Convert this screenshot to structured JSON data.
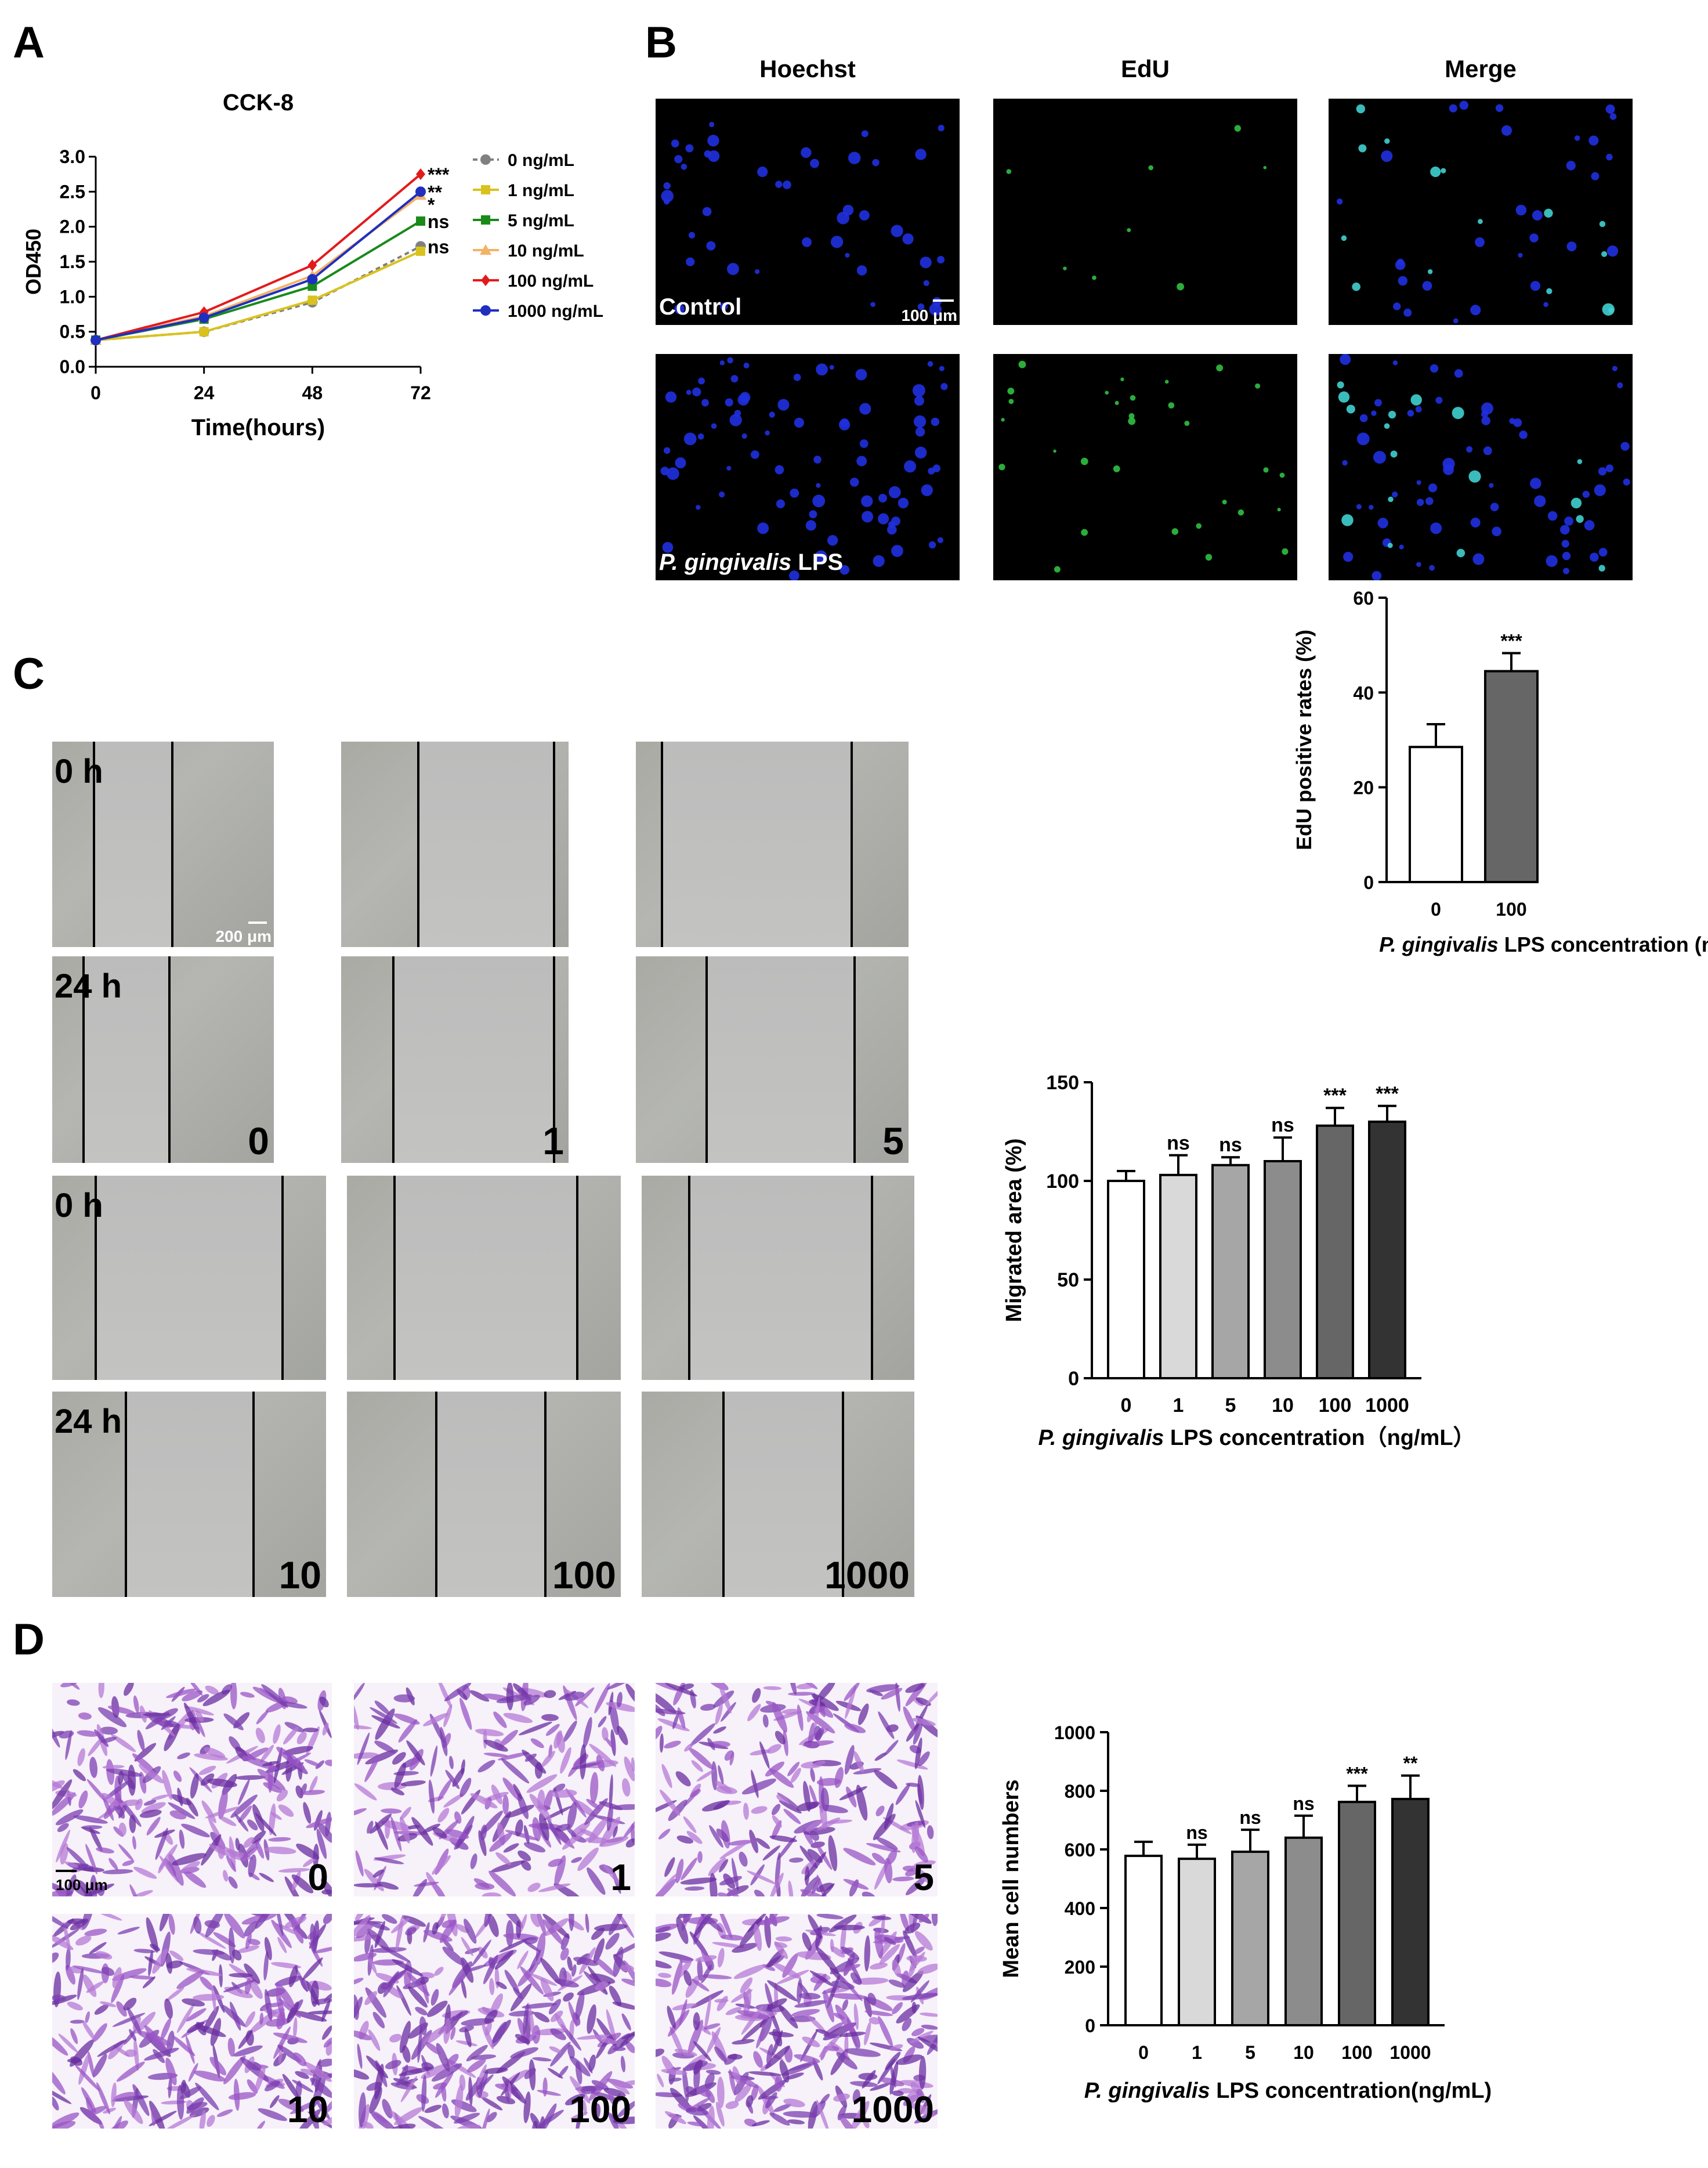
{
  "panels": {
    "a": "A",
    "b": "B",
    "c": "C",
    "d": "D"
  },
  "panel_b": {
    "columns": [
      "Hoechst",
      "EdU",
      "Merge"
    ],
    "row_labels": {
      "control": "Control",
      "lps_italic": "P. gingivalis",
      "lps_rest": " LPS"
    },
    "scalebar": "100 μm"
  },
  "panel_c": {
    "time_0": "0 h",
    "time_24": "24 h",
    "scalebar": "200 μm",
    "conc_labels": [
      "0",
      "1",
      "5",
      "10",
      "100",
      "1000"
    ]
  },
  "panel_d": {
    "scalebar": "100 μm",
    "conc_labels": [
      "0",
      "1",
      "5",
      "10",
      "100",
      "1000"
    ]
  },
  "colors": {
    "series": [
      "#808080",
      "#d9c21e",
      "#1a8a1a",
      "#f4b266",
      "#e31a1c",
      "#1f2fbf"
    ],
    "bars": [
      "#ffffff",
      "#d9d9d9",
      "#a6a6a6",
      "#8c8c8c",
      "#666666",
      "#333333"
    ]
  },
  "chart_data": [
    {
      "type": "line",
      "title": "CCK-8",
      "xlabel": "Time(hours)",
      "ylabel": "OD450",
      "x": [
        0,
        24,
        48,
        72
      ],
      "xlim": [
        0,
        72
      ],
      "ylim": [
        0,
        3.0
      ],
      "yticks": [
        0.0,
        0.5,
        1.0,
        1.5,
        2.0,
        2.5,
        3.0
      ],
      "ytick_labels": [
        "0.0",
        "0.5",
        "1.0",
        "1.5",
        "2.0",
        "2.5",
        "3.0"
      ],
      "series": [
        {
          "name": "0 ng/mL",
          "values": [
            0.38,
            0.5,
            0.92,
            1.72
          ],
          "sig": "ns"
        },
        {
          "name": "1 ng/mL",
          "values": [
            0.38,
            0.5,
            0.95,
            1.65
          ],
          "sig": ""
        },
        {
          "name": "5 ng/mL",
          "values": [
            0.38,
            0.68,
            1.15,
            2.08
          ],
          "sig": "ns"
        },
        {
          "name": "10 ng/mL",
          "values": [
            0.38,
            0.72,
            1.3,
            2.45
          ],
          "sig": "*"
        },
        {
          "name": "100 ng/mL",
          "values": [
            0.38,
            0.78,
            1.45,
            2.75
          ],
          "sig": "***"
        },
        {
          "name": "1000 ng/mL",
          "values": [
            0.38,
            0.7,
            1.25,
            2.5
          ],
          "sig": "**"
        }
      ],
      "legend": "right"
    },
    {
      "type": "bar",
      "categories": [
        "0",
        "100"
      ],
      "values": [
        28.5,
        44.5
      ],
      "errors": [
        4.8,
        3.8
      ],
      "sig": [
        "",
        "***"
      ],
      "ylabel": "EdU positive rates (%)",
      "ylim": [
        0,
        60
      ],
      "yticks": [
        "0",
        "20",
        "40",
        "60"
      ],
      "xlabel_italic": "P. gingivalis",
      "xlabel_rest": " LPS concentration (ng/mL)"
    },
    {
      "type": "bar",
      "categories": [
        "0",
        "1",
        "5",
        "10",
        "100",
        "1000"
      ],
      "values": [
        100,
        103,
        108,
        110,
        128,
        130
      ],
      "errors": [
        5,
        10,
        4,
        12,
        9,
        8
      ],
      "sig": [
        "",
        "ns",
        "ns",
        "ns",
        "***",
        "***"
      ],
      "ylabel": "Migrated area (%)",
      "ylim": [
        0,
        150
      ],
      "yticks": [
        "0",
        "50",
        "100",
        "150"
      ],
      "xlabel_italic": "P. gingivalis",
      "xlabel_rest": " LPS concentration（ng/mL）"
    },
    {
      "type": "bar",
      "categories": [
        "0",
        "1",
        "5",
        "10",
        "100",
        "1000"
      ],
      "values": [
        578,
        568,
        592,
        640,
        762,
        772
      ],
      "errors": [
        48,
        48,
        75,
        75,
        55,
        80
      ],
      "sig": [
        "",
        "ns",
        "ns",
        "ns",
        "***",
        "**"
      ],
      "ylabel": "Mean cell numbers",
      "ylim": [
        0,
        1000
      ],
      "yticks": [
        "0",
        "200",
        "400",
        "600",
        "800",
        "1000"
      ],
      "xlabel_italic": "P. gingivalis",
      "xlabel_rest": " LPS concentration(ng/mL)"
    }
  ]
}
